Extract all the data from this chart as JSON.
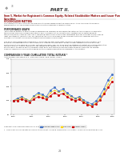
{
  "title": "PART II.",
  "title_color": "#333333",
  "section_title": "Item 5. Market for Registrant's Common Equity, Related Stockholder Matters and Issuer Purchases of Equity\nSecurities",
  "section_title_color": "#8b0000",
  "background_color": "#ffffff",
  "chart_title": "COMPARISON 5-YEAR CUMULATIVE TOTAL RETURN *",
  "chart_subtitle": "Among Barclays Bank PLC, S&P 500 Index, and Lipper Index",
  "barclays": [
    100,
    104,
    107,
    103,
    99,
    108,
    114,
    111,
    107,
    119,
    124,
    117,
    121,
    114,
    109,
    104,
    107,
    101,
    97,
    94,
    99,
    109,
    122,
    138,
    148
  ],
  "sp500": [
    100,
    102,
    106,
    103,
    100,
    107,
    111,
    109,
    105,
    114,
    119,
    115,
    118,
    111,
    107,
    103,
    106,
    99,
    94,
    91,
    96,
    104,
    116,
    130,
    142
  ],
  "lipper": [
    100,
    100,
    103,
    100,
    97,
    103,
    107,
    105,
    102,
    109,
    114,
    110,
    113,
    107,
    103,
    100,
    102,
    97,
    93,
    90,
    94,
    101,
    112,
    124,
    135
  ],
  "barclays_color": "#4472c4",
  "sp500_color": "#ffd700",
  "lipper_color": "#cc0000",
  "ylim": [
    75,
    175
  ],
  "yticks": [
    75,
    100,
    125,
    150,
    175
  ],
  "xtick_labels": [
    "2010",
    "2011",
    "2011",
    "2011",
    "2011",
    "2012",
    "2012",
    "2012",
    "2012",
    "2013",
    "2013",
    "2013",
    "2013",
    "2014",
    "2014",
    "2014",
    "2014",
    "2015",
    "2015",
    "2015",
    "2015",
    "2016",
    "2016",
    "2016",
    "2016"
  ],
  "legend_labels": [
    "Barclays Bank PLC",
    "S&P 500",
    "Lipper Index"
  ]
}
